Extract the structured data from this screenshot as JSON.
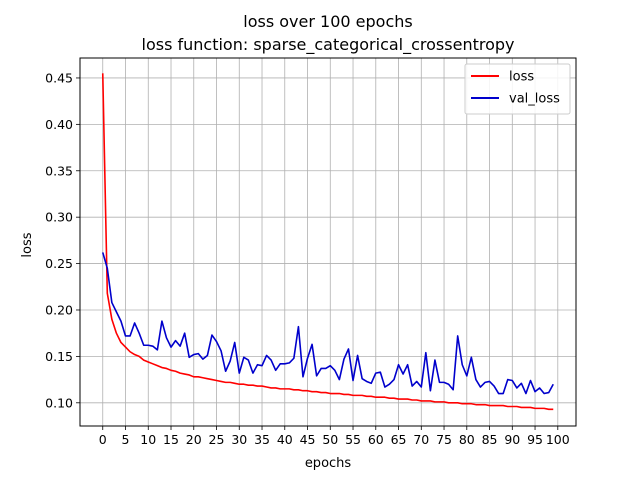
{
  "chart_data": {
    "type": "line",
    "title": "loss over 100 epochs",
    "subtitle": "loss function: sparse_categorical_crossentropy",
    "xlabel": "epochs",
    "ylabel": "loss",
    "xlim": [
      -5,
      104
    ],
    "ylim": [
      0.075,
      0.4715
    ],
    "x_ticks": [
      0,
      5,
      10,
      15,
      20,
      25,
      30,
      35,
      40,
      45,
      50,
      55,
      60,
      65,
      70,
      75,
      80,
      85,
      90,
      95,
      100
    ],
    "y_ticks": [
      0.1,
      0.15,
      0.2,
      0.25,
      0.3,
      0.35,
      0.4,
      0.45
    ],
    "grid": true,
    "legend_position": "top-right",
    "series": [
      {
        "name": "loss",
        "color": "#ff0000",
        "x": [
          0,
          1,
          2,
          3,
          4,
          5,
          6,
          7,
          8,
          9,
          10,
          11,
          12,
          13,
          14,
          15,
          16,
          17,
          18,
          19,
          20,
          21,
          22,
          23,
          24,
          25,
          26,
          27,
          28,
          29,
          30,
          31,
          32,
          33,
          34,
          35,
          36,
          37,
          38,
          39,
          40,
          41,
          42,
          43,
          44,
          45,
          46,
          47,
          48,
          49,
          50,
          51,
          52,
          53,
          54,
          55,
          56,
          57,
          58,
          59,
          60,
          61,
          62,
          63,
          64,
          65,
          66,
          67,
          68,
          69,
          70,
          71,
          72,
          73,
          74,
          75,
          76,
          77,
          78,
          79,
          80,
          81,
          82,
          83,
          84,
          85,
          86,
          87,
          88,
          89,
          90,
          91,
          92,
          93,
          94,
          95,
          96,
          97,
          98,
          99
        ],
        "values": [
          0.455,
          0.218,
          0.19,
          0.175,
          0.165,
          0.16,
          0.155,
          0.152,
          0.15,
          0.146,
          0.144,
          0.142,
          0.14,
          0.138,
          0.137,
          0.135,
          0.134,
          0.132,
          0.131,
          0.13,
          0.128,
          0.128,
          0.127,
          0.126,
          0.125,
          0.124,
          0.123,
          0.122,
          0.122,
          0.121,
          0.12,
          0.12,
          0.119,
          0.119,
          0.118,
          0.118,
          0.117,
          0.116,
          0.116,
          0.115,
          0.115,
          0.115,
          0.114,
          0.114,
          0.113,
          0.113,
          0.112,
          0.112,
          0.111,
          0.111,
          0.11,
          0.11,
          0.11,
          0.109,
          0.109,
          0.108,
          0.108,
          0.108,
          0.107,
          0.107,
          0.106,
          0.106,
          0.106,
          0.105,
          0.105,
          0.104,
          0.104,
          0.104,
          0.103,
          0.103,
          0.102,
          0.102,
          0.102,
          0.101,
          0.101,
          0.101,
          0.1,
          0.1,
          0.1,
          0.099,
          0.099,
          0.099,
          0.098,
          0.098,
          0.098,
          0.097,
          0.097,
          0.097,
          0.097,
          0.096,
          0.096,
          0.096,
          0.095,
          0.095,
          0.095,
          0.094,
          0.094,
          0.094,
          0.093,
          0.093
        ]
      },
      {
        "name": "val_loss",
        "color": "#0000cc",
        "x": [
          0,
          1,
          2,
          3,
          4,
          5,
          6,
          7,
          8,
          9,
          10,
          11,
          12,
          13,
          14,
          15,
          16,
          17,
          18,
          19,
          20,
          21,
          22,
          23,
          24,
          25,
          26,
          27,
          28,
          29,
          30,
          31,
          32,
          33,
          34,
          35,
          36,
          37,
          38,
          39,
          40,
          41,
          42,
          43,
          44,
          45,
          46,
          47,
          48,
          49,
          50,
          51,
          52,
          53,
          54,
          55,
          56,
          57,
          58,
          59,
          60,
          61,
          62,
          63,
          64,
          65,
          66,
          67,
          68,
          69,
          70,
          71,
          72,
          73,
          74,
          75,
          76,
          77,
          78,
          79,
          80,
          81,
          82,
          83,
          84,
          85,
          86,
          87,
          88,
          89,
          90,
          91,
          92,
          93,
          94,
          95,
          96,
          97,
          98,
          99
        ],
        "values": [
          0.262,
          0.245,
          0.208,
          0.198,
          0.188,
          0.172,
          0.172,
          0.186,
          0.175,
          0.162,
          0.162,
          0.161,
          0.157,
          0.188,
          0.17,
          0.16,
          0.167,
          0.161,
          0.175,
          0.149,
          0.152,
          0.153,
          0.147,
          0.151,
          0.173,
          0.166,
          0.156,
          0.134,
          0.145,
          0.165,
          0.132,
          0.149,
          0.146,
          0.132,
          0.141,
          0.14,
          0.151,
          0.146,
          0.135,
          0.142,
          0.142,
          0.143,
          0.148,
          0.182,
          0.128,
          0.148,
          0.163,
          0.129,
          0.137,
          0.137,
          0.14,
          0.135,
          0.125,
          0.147,
          0.158,
          0.124,
          0.151,
          0.126,
          0.123,
          0.121,
          0.132,
          0.133,
          0.117,
          0.12,
          0.125,
          0.141,
          0.131,
          0.141,
          0.118,
          0.123,
          0.117,
          0.154,
          0.113,
          0.146,
          0.122,
          0.122,
          0.12,
          0.114,
          0.172,
          0.141,
          0.129,
          0.149,
          0.125,
          0.117,
          0.122,
          0.123,
          0.118,
          0.11,
          0.11,
          0.125,
          0.124,
          0.116,
          0.121,
          0.11,
          0.124,
          0.112,
          0.116,
          0.11,
          0.111,
          0.12
        ]
      }
    ]
  }
}
